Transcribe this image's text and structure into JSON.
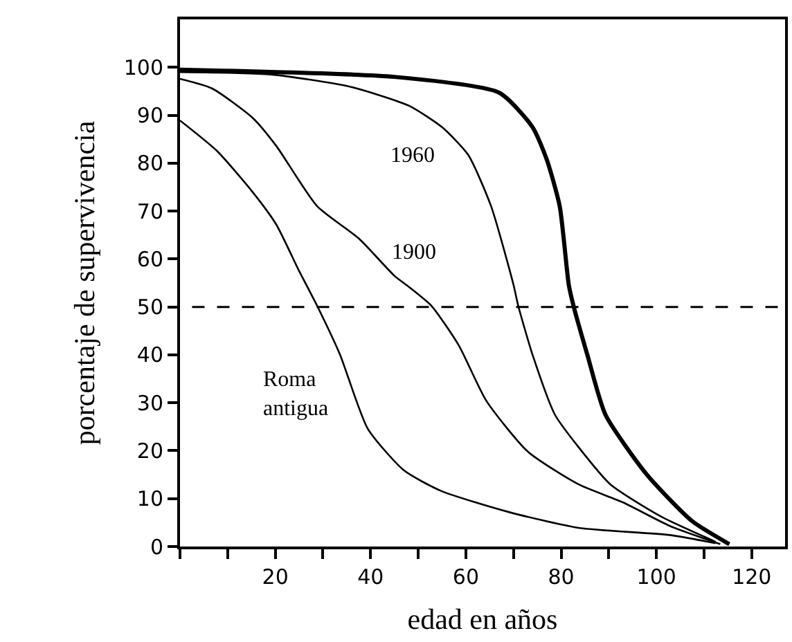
{
  "chart_data": {
    "type": "line",
    "xlabel": "edad en años",
    "ylabel": "porcentaje de supervivencia",
    "xlim": [
      0,
      127
    ],
    "ylim": [
      0,
      110
    ],
    "xticks": [
      {
        "value": 0,
        "label": null
      },
      {
        "value": 10,
        "label": null
      },
      20,
      {
        "value": 30,
        "label": null
      },
      40,
      {
        "value": 50,
        "label": null
      },
      60,
      {
        "value": 70,
        "label": null
      },
      80,
      {
        "value": 90,
        "label": null
      },
      100,
      {
        "value": 110,
        "label": null
      },
      120
    ],
    "yticks": [
      0,
      10,
      20,
      30,
      40,
      50,
      60,
      70,
      80,
      90,
      100
    ],
    "legend": false,
    "marker": "none",
    "line_style": "solid",
    "series": [
      {
        "color": "#000000",
        "x": [
          0,
          45,
          67,
          74,
          77,
          79.7,
          81.6,
          82.6,
          85.5,
          89.3,
          98,
          107.5,
          115.3
        ],
        "values": [
          99.5,
          98,
          94.7,
          87.5,
          80.7,
          71,
          54.6,
          50.2,
          40,
          27.5,
          15,
          5.3,
          0.5
        ]
      },
      {
        "name": "1960",
        "color": "#000000",
        "x": [
          0,
          19,
          35.5,
          48,
          55,
          60.5,
          65.3,
          70,
          71,
          74,
          78.7,
          83.6,
          90.3,
          100.9,
          112.4
        ],
        "values": [
          99,
          98.5,
          96,
          92,
          87.5,
          81.7,
          71,
          54.6,
          50.2,
          40,
          27.5,
          20.8,
          13,
          6.3,
          1
        ]
      },
      {
        "name": "1900",
        "color": "#000000",
        "x": [
          0,
          6.7,
          15.3,
          20.2,
          28.8,
          37.5,
          45,
          48,
          52.8,
          58.5,
          64.3,
          73,
          83.6,
          93,
          102.8,
          113.4
        ],
        "values": [
          97.6,
          95.6,
          89.4,
          83.6,
          71,
          64.3,
          56.5,
          54.2,
          50.2,
          42,
          30.4,
          19.8,
          13,
          9.2,
          4.3,
          0.5
        ]
      },
      {
        "name": "Roma\nantigua",
        "color": "#000000",
        "x": [
          0,
          7.7,
          15.3,
          20.2,
          25,
          28.8,
          33.6,
          39.4,
          47,
          54.8,
          69,
          83.6,
          102.8,
          112.4
        ],
        "values": [
          88.9,
          82.6,
          73.9,
          67.2,
          57.5,
          50.2,
          40,
          24.6,
          15.9,
          11.6,
          7.2,
          3.9,
          2.4,
          0.7
        ]
      }
    ],
    "ref_lines": [
      {
        "axis": "y",
        "value": 50,
        "label": null,
        "color": "#000000",
        "line_style": "dashed"
      }
    ]
  }
}
